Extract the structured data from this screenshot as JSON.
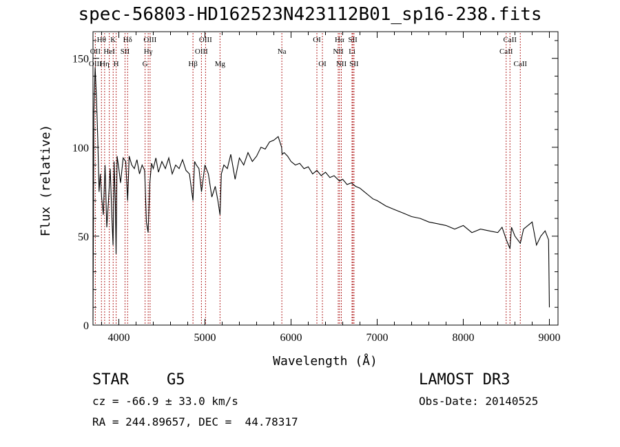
{
  "chart_data": {
    "type": "line",
    "title": "spec-56803-HD162523N423112B01_sp16-238.fits",
    "xlabel": "Wavelength (Å)",
    "ylabel": "Flux (relative)",
    "xlim": [
      3700,
      9100
    ],
    "ylim": [
      0,
      165
    ],
    "xticks": [
      4000,
      5000,
      6000,
      7000,
      8000,
      9000
    ],
    "yticks": [
      0,
      50,
      100,
      150
    ],
    "grid": false,
    "series": [
      {
        "name": "spectrum",
        "x": [
          3700,
          3710,
          3725,
          3740,
          3755,
          3770,
          3785,
          3800,
          3820,
          3840,
          3860,
          3880,
          3900,
          3920,
          3933,
          3945,
          3960,
          3968,
          3980,
          4000,
          4020,
          4050,
          4080,
          4102,
          4120,
          4150,
          4180,
          4210,
          4240,
          4270,
          4300,
          4320,
          4340,
          4360,
          4380,
          4400,
          4430,
          4460,
          4500,
          4540,
          4580,
          4620,
          4660,
          4700,
          4740,
          4780,
          4820,
          4861,
          4880,
          4900,
          4930,
          4960,
          5000,
          5040,
          5080,
          5120,
          5150,
          5175,
          5190,
          5220,
          5260,
          5300,
          5350,
          5400,
          5450,
          5500,
          5550,
          5600,
          5650,
          5700,
          5750,
          5800,
          5850,
          5890,
          5896,
          5920,
          5960,
          6000,
          6050,
          6100,
          6150,
          6200,
          6250,
          6300,
          6350,
          6400,
          6450,
          6500,
          6563,
          6600,
          6650,
          6700,
          6750,
          6800,
          6850,
          6900,
          6950,
          7000,
          7100,
          7200,
          7300,
          7400,
          7500,
          7600,
          7700,
          7800,
          7900,
          8000,
          8100,
          8200,
          8300,
          8400,
          8450,
          8500,
          8542,
          8560,
          8600,
          8662,
          8700,
          8750,
          8800,
          8850,
          8900,
          8950,
          8990,
          9000
        ],
        "values": [
          3,
          120,
          145,
          128,
          105,
          75,
          85,
          72,
          62,
          90,
          55,
          70,
          88,
          60,
          45,
          92,
          68,
          40,
          95,
          88,
          80,
          94,
          92,
          70,
          95,
          90,
          88,
          93,
          85,
          90,
          87,
          58,
          52,
          80,
          91,
          88,
          94,
          86,
          92,
          88,
          94,
          85,
          90,
          88,
          93,
          87,
          85,
          70,
          92,
          90,
          88,
          75,
          90,
          85,
          72,
          78,
          70,
          62,
          85,
          90,
          88,
          96,
          82,
          94,
          90,
          97,
          92,
          95,
          100,
          99,
          103,
          104,
          106,
          100,
          96,
          97,
          95,
          92,
          90,
          91,
          88,
          89,
          85,
          87,
          84,
          86,
          83,
          84,
          81,
          82,
          79,
          80,
          78,
          77,
          75,
          73,
          71,
          70,
          67,
          65,
          63,
          61,
          60,
          58,
          57,
          56,
          54,
          56,
          52,
          54,
          53,
          52,
          55,
          48,
          43,
          55,
          50,
          46,
          54,
          56,
          58,
          45,
          50,
          53,
          48,
          10
        ]
      }
    ],
    "line_labels": [
      {
        "label": "Hθ",
        "x": 3798,
        "row": 1
      },
      {
        "label": "OII",
        "x": 3727,
        "row": 2
      },
      {
        "label": "OIII",
        "x": 3727,
        "row": 3
      },
      {
        "label": "K",
        "x": 3934,
        "row": 1
      },
      {
        "label": "HeI",
        "x": 3889,
        "row": 2
      },
      {
        "label": "Hη",
        "x": 3835,
        "row": 3
      },
      {
        "label": "Hδ",
        "x": 4102,
        "row": 1
      },
      {
        "label": "SII",
        "x": 4072,
        "row": 2
      },
      {
        "label": "H",
        "x": 3969,
        "row": 3
      },
      {
        "label": "OIII",
        "x": 4363,
        "row": 1
      },
      {
        "label": "Hγ",
        "x": 4341,
        "row": 2
      },
      {
        "label": "G",
        "x": 4305,
        "row": 3
      },
      {
        "label": "OIII",
        "x": 5007,
        "row": 1
      },
      {
        "label": "OIII",
        "x": 4959,
        "row": 2
      },
      {
        "label": "Hβ",
        "x": 4861,
        "row": 3
      },
      {
        "label": "Mg",
        "x": 5175,
        "row": 3
      },
      {
        "label": "Na",
        "x": 5893,
        "row": 2
      },
      {
        "label": "OI",
        "x": 6300,
        "row": 1
      },
      {
        "label": "OI",
        "x": 6364,
        "row": 3
      },
      {
        "label": "Hα",
        "x": 6563,
        "row": 1
      },
      {
        "label": "NII",
        "x": 6548,
        "row": 2
      },
      {
        "label": "NII",
        "x": 6584,
        "row": 3
      },
      {
        "label": "SII",
        "x": 6717,
        "row": 1
      },
      {
        "label": "Li",
        "x": 6708,
        "row": 2
      },
      {
        "label": "SII",
        "x": 6731,
        "row": 3
      },
      {
        "label": "CaII",
        "x": 8542,
        "row": 1
      },
      {
        "label": "CaII",
        "x": 8498,
        "row": 2
      },
      {
        "label": "CaII",
        "x": 8662,
        "row": 3
      }
    ],
    "line_markers": [
      3727,
      3798,
      3835,
      3889,
      3934,
      3969,
      4072,
      4102,
      4305,
      4341,
      4363,
      4861,
      4959,
      5007,
      5175,
      5893,
      6300,
      6364,
      6548,
      6563,
      6584,
      6708,
      6717,
      6731,
      8498,
      8542,
      8662
    ],
    "line_color": "#000000",
    "marker_color": "#b22222"
  },
  "info": {
    "object_class": "STAR",
    "subclass": "G5",
    "survey": "LAMOST DR3",
    "redshift": "cz = -66.9 ± 33.0 km/s",
    "obs_date": "Obs-Date: 20140525",
    "coords": "RA = 244.89657, DEC =  44.78317"
  }
}
